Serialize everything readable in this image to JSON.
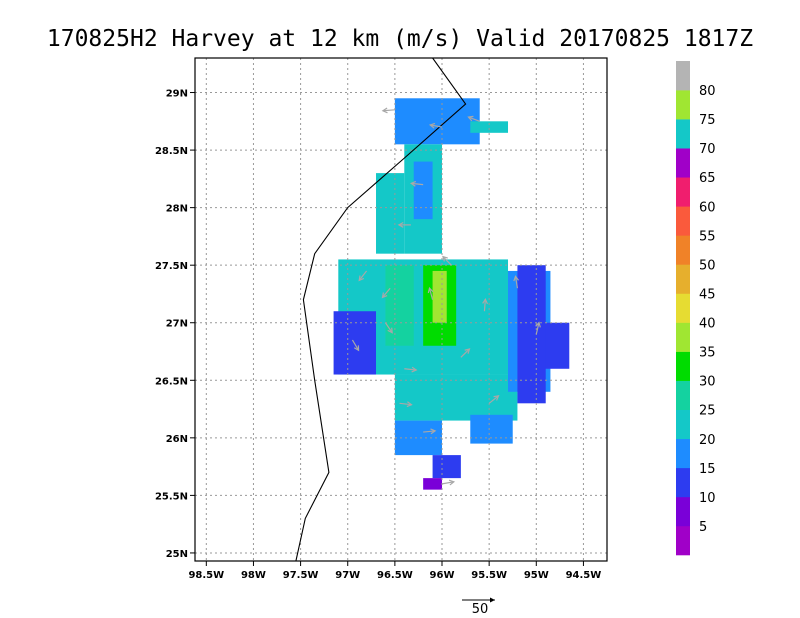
{
  "chart_data": {
    "type": "heatmap",
    "title": "170825H2 Harvey at 12 km (m/s) Valid 20170825 1817Z",
    "x_ticks": [
      {
        "lon": -98.5,
        "label": "98.5W"
      },
      {
        "lon": -98.0,
        "label": "98W"
      },
      {
        "lon": -97.5,
        "label": "97.5W"
      },
      {
        "lon": -97.0,
        "label": "97W"
      },
      {
        "lon": -96.5,
        "label": "96.5W"
      },
      {
        "lon": -96.0,
        "label": "96W"
      },
      {
        "lon": -95.5,
        "label": "95.5W"
      },
      {
        "lon": -95.0,
        "label": "95W"
      },
      {
        "lon": -94.5,
        "label": "94.5W"
      }
    ],
    "y_ticks": [
      {
        "lat": 25.0,
        "label": "25N"
      },
      {
        "lat": 25.5,
        "label": "25.5N"
      },
      {
        "lat": 26.0,
        "label": "26N"
      },
      {
        "lat": 26.5,
        "label": "26.5N"
      },
      {
        "lat": 27.0,
        "label": "27N"
      },
      {
        "lat": 27.5,
        "label": "27.5N"
      },
      {
        "lat": 28.0,
        "label": "28N"
      },
      {
        "lat": 28.5,
        "label": "28.5N"
      },
      {
        "lat": 29.0,
        "label": "29N"
      }
    ],
    "xlim": [
      -98.62,
      -94.25
    ],
    "ylim": [
      24.93,
      29.3
    ],
    "grid": true,
    "center": {
      "lon": -96.33,
      "lat": 27.15
    },
    "colorbar": {
      "levels": [
        5,
        10,
        15,
        20,
        25,
        30,
        35,
        40,
        45,
        50,
        55,
        60,
        65,
        70,
        75,
        80
      ],
      "colors": [
        "#a000c8",
        "#7a00d8",
        "#2d3cf0",
        "#1e8cff",
        "#14c8c8",
        "#14d2a0",
        "#00dc00",
        "#a0e632",
        "#e6dc32",
        "#e6af2d",
        "#f08228",
        "#fa5a3c",
        "#f01e6e",
        "#a000c8",
        "#14c8c8",
        "#a0e632",
        "#b4b4b4"
      ]
    },
    "coastline": [
      {
        "lon": -96.1,
        "lat": 29.3
      },
      {
        "lon": -95.75,
        "lat": 28.9
      },
      {
        "lon": -96.4,
        "lat": 28.43
      },
      {
        "lon": -97.0,
        "lat": 28.0
      },
      {
        "lon": -97.35,
        "lat": 27.6
      },
      {
        "lon": -97.47,
        "lat": 27.2
      },
      {
        "lon": -97.35,
        "lat": 26.5
      },
      {
        "lon": -97.2,
        "lat": 25.7
      },
      {
        "lon": -97.45,
        "lat": 25.3
      },
      {
        "lon": -97.55,
        "lat": 24.93
      }
    ],
    "wind_cells": [
      {
        "lon0": -96.5,
        "lon1": -95.6,
        "lat0": 28.55,
        "lat1": 28.95,
        "speed": 17
      },
      {
        "lon0": -95.7,
        "lon1": -95.3,
        "lat0": 28.65,
        "lat1": 28.75,
        "speed": 22
      },
      {
        "lon0": -96.4,
        "lon1": -96.0,
        "lat0": 27.6,
        "lat1": 28.55,
        "speed": 22
      },
      {
        "lon0": -96.7,
        "lon1": -96.4,
        "lat0": 27.6,
        "lat1": 28.3,
        "speed": 22
      },
      {
        "lon0": -96.3,
        "lon1": -96.1,
        "lat0": 27.9,
        "lat1": 28.4,
        "speed": 17
      },
      {
        "lon0": -97.1,
        "lon1": -95.3,
        "lat0": 26.55,
        "lat1": 27.55,
        "speed": 22
      },
      {
        "lon0": -96.5,
        "lon1": -95.2,
        "lat0": 26.15,
        "lat1": 26.55,
        "speed": 22
      },
      {
        "lon0": -95.3,
        "lon1": -94.85,
        "lat0": 26.4,
        "lat1": 27.45,
        "speed": 17
      },
      {
        "lon0": -94.95,
        "lon1": -94.65,
        "lat0": 26.6,
        "lat1": 27.0,
        "speed": 12
      },
      {
        "lon0": -95.2,
        "lon1": -94.9,
        "lat0": 26.3,
        "lat1": 27.5,
        "speed": 12
      },
      {
        "lon0": -96.5,
        "lon1": -96.0,
        "lat0": 25.85,
        "lat1": 26.15,
        "speed": 17
      },
      {
        "lon0": -95.7,
        "lon1": -95.25,
        "lat0": 25.95,
        "lat1": 26.2,
        "speed": 17
      },
      {
        "lon0": -97.15,
        "lon1": -96.7,
        "lat0": 26.55,
        "lat1": 27.1,
        "speed": 12
      },
      {
        "lon0": -96.1,
        "lon1": -95.8,
        "lat0": 25.65,
        "lat1": 25.85,
        "speed": 12
      },
      {
        "lon0": -96.2,
        "lon1": -96.0,
        "lat0": 25.55,
        "lat1": 25.65,
        "speed": 7
      },
      {
        "lon0": -96.6,
        "lon1": -96.3,
        "lat0": 26.8,
        "lat1": 27.5,
        "speed": 27
      },
      {
        "lon0": -96.2,
        "lon1": -95.85,
        "lat0": 26.8,
        "lat1": 27.5,
        "speed": 32
      },
      {
        "lon0": -96.1,
        "lon1": -95.95,
        "lat0": 27.0,
        "lat1": 27.45,
        "speed": 37
      }
    ],
    "vector_field": [
      {
        "lon": -96.33,
        "lat": 27.85
      },
      {
        "lon": -96.8,
        "lat": 27.45
      },
      {
        "lon": -95.9,
        "lat": 27.5
      },
      {
        "lon": -95.55,
        "lat": 27.1
      },
      {
        "lon": -96.95,
        "lat": 26.85
      },
      {
        "lon": -96.4,
        "lat": 26.6
      },
      {
        "lon": -95.8,
        "lat": 26.7
      },
      {
        "lon": -96.2,
        "lat": 28.2
      },
      {
        "lon": -96.0,
        "lat": 28.7
      },
      {
        "lon": -95.6,
        "lat": 28.75
      },
      {
        "lon": -96.5,
        "lat": 28.85
      },
      {
        "lon": -95.2,
        "lat": 27.3
      },
      {
        "lon": -95.0,
        "lat": 26.9
      },
      {
        "lon": -95.5,
        "lat": 26.3
      },
      {
        "lon": -96.2,
        "lat": 26.05
      },
      {
        "lon": -96.45,
        "lat": 26.3
      },
      {
        "lon": -96.0,
        "lat": 25.6
      },
      {
        "lon": -96.6,
        "lat": 27.0
      },
      {
        "lon": -96.55,
        "lat": 27.3
      },
      {
        "lon": -96.1,
        "lat": 27.2
      }
    ],
    "reference_vector": {
      "label": "50"
    }
  }
}
